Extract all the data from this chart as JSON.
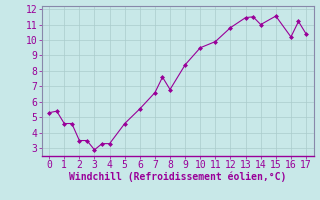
{
  "x": [
    0,
    0.5,
    1,
    1.5,
    2,
    2.5,
    3,
    3.5,
    4,
    5,
    6,
    7,
    7.5,
    8,
    9,
    10,
    11,
    12,
    13,
    13.5,
    14,
    15,
    16,
    16.5,
    17
  ],
  "y": [
    5.3,
    5.4,
    4.6,
    4.6,
    3.5,
    3.5,
    2.9,
    3.3,
    3.3,
    4.6,
    5.55,
    6.6,
    7.6,
    6.8,
    8.4,
    9.5,
    9.9,
    10.8,
    11.45,
    11.5,
    11.0,
    11.55,
    10.2,
    11.2,
    10.4
  ],
  "line_color": "#990099",
  "marker": "D",
  "marker_size": 2,
  "bg_color": "#c8e8e8",
  "grid_color": "#aacccc",
  "border_color": "#8888aa",
  "xlabel": "Windchill (Refroidissement éolien,°C)",
  "xlabel_color": "#990099",
  "xlabel_fontsize": 7,
  "tick_fontsize": 7,
  "tick_color": "#990099",
  "xlim": [
    -0.5,
    17.5
  ],
  "ylim": [
    2.5,
    12.2
  ],
  "xticks": [
    0,
    1,
    2,
    3,
    4,
    5,
    6,
    7,
    8,
    9,
    10,
    11,
    12,
    13,
    14,
    15,
    16,
    17
  ],
  "yticks": [
    3,
    4,
    5,
    6,
    7,
    8,
    9,
    10,
    11,
    12
  ]
}
